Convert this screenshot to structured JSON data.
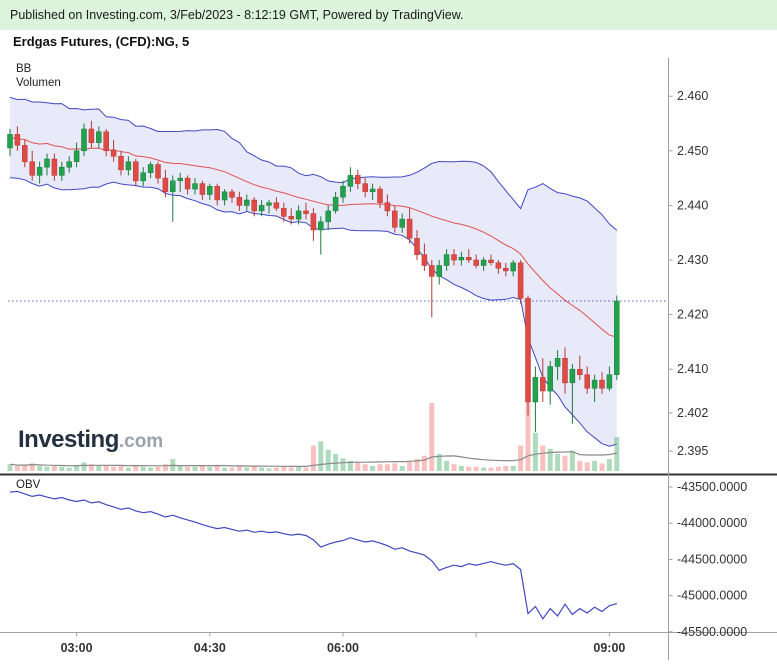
{
  "header": {
    "published_line": "Published on Investing.com, 3/Feb/2023 - 8:12:19 GMT, Powered by TradingView."
  },
  "title": "Erdgas Futures, (CFD):NG, 5",
  "overlays": {
    "bb_label": "BB",
    "volume_label": "Volumen",
    "obv_label": "OBV",
    "watermark_main": "Investing",
    "watermark_suffix": ".com"
  },
  "colors": {
    "header_bg": "#dcf3dc",
    "header_text": "#1a1a1a",
    "up": "#23a24d",
    "up_border": "#1a7d3b",
    "down": "#e04a45",
    "down_border": "#b33a36",
    "bb_line": "#4149c0",
    "bb_fill": "rgba(110,118,216,0.16)",
    "bb_mid": "#e05050",
    "last_price_line": "#4a5fd0",
    "vol_up": "rgba(76,175,110,0.45)",
    "vol_down": "rgba(239,105,100,0.42)",
    "vol_ma": "#8a8a8a",
    "obv_line": "#4149c0",
    "axis_text": "#333333",
    "axis_line": "#a0a0a0",
    "separator": "#333333"
  },
  "chart_data": {
    "type": "candlestick",
    "title": "Erdgas Futures, (CFD):NG, 5",
    "interval_minutes": 5,
    "indicators": [
      "BB",
      "Volumen",
      "OBV"
    ],
    "x_ticks": [
      "03:00",
      "04:30",
      "06:00",
      "09:00"
    ],
    "minor_x_ticks": [
      "07:30"
    ],
    "price_pane": {
      "ticks": [
        "2.460",
        "2.450",
        "2.440",
        "2.430",
        "2.420",
        "2.410",
        "2.402",
        "2.395"
      ],
      "last_price": 2.4225,
      "bb": {
        "window": 20,
        "mult": 2,
        "seed_closes": [
          2.448,
          2.456,
          2.45,
          2.4575,
          2.452,
          2.446,
          2.4545,
          2.45,
          2.457,
          2.449,
          2.4555,
          2.4475,
          2.453,
          2.4585,
          2.4465,
          2.454,
          2.451,
          2.4565,
          2.4485,
          2.4525
        ]
      },
      "candles": [
        [
          "02:15",
          2.4505,
          2.454,
          2.449,
          2.453,
          8
        ],
        [
          "02:20",
          2.453,
          2.4545,
          2.45,
          2.451,
          6
        ],
        [
          "02:25",
          2.451,
          2.452,
          2.447,
          2.448,
          7
        ],
        [
          "02:30",
          2.448,
          2.45,
          2.4445,
          2.4455,
          9
        ],
        [
          "02:35",
          2.4455,
          2.448,
          2.444,
          2.447,
          6
        ],
        [
          "02:40",
          2.447,
          2.4495,
          2.4455,
          2.4485,
          5
        ],
        [
          "02:45",
          2.4485,
          2.4495,
          2.4445,
          2.4455,
          6
        ],
        [
          "02:50",
          2.4455,
          2.448,
          2.4445,
          2.447,
          5
        ],
        [
          "02:55",
          2.447,
          2.449,
          2.446,
          2.448,
          4
        ],
        [
          "03:00",
          2.448,
          2.4515,
          2.447,
          2.45,
          7
        ],
        [
          "03:05",
          2.45,
          2.455,
          2.449,
          2.454,
          10
        ],
        [
          "03:10",
          2.454,
          2.4555,
          2.4505,
          2.4515,
          8
        ],
        [
          "03:15",
          2.4515,
          2.4545,
          2.4505,
          2.4535,
          6
        ],
        [
          "03:20",
          2.4535,
          2.454,
          2.449,
          2.45,
          7
        ],
        [
          "03:25",
          2.45,
          2.452,
          2.448,
          2.449,
          5
        ],
        [
          "03:30",
          2.449,
          2.45,
          2.4455,
          2.4465,
          6
        ],
        [
          "03:35",
          2.4465,
          2.449,
          2.4455,
          2.448,
          4
        ],
        [
          "03:40",
          2.448,
          2.4485,
          2.4435,
          2.4445,
          7
        ],
        [
          "03:45",
          2.4445,
          2.447,
          2.4435,
          2.446,
          5
        ],
        [
          "03:50",
          2.446,
          2.448,
          2.445,
          2.4475,
          4
        ],
        [
          "03:55",
          2.4475,
          2.448,
          2.444,
          2.445,
          5
        ],
        [
          "04:00",
          2.445,
          2.4465,
          2.4415,
          2.4425,
          8
        ],
        [
          "04:05",
          2.4425,
          2.4455,
          2.437,
          2.4445,
          14
        ],
        [
          "04:10",
          2.4445,
          2.446,
          2.4425,
          2.445,
          6
        ],
        [
          "04:15",
          2.445,
          2.4455,
          2.442,
          2.443,
          5
        ],
        [
          "04:20",
          2.443,
          2.445,
          2.442,
          2.444,
          5
        ],
        [
          "04:25",
          2.444,
          2.4445,
          2.441,
          2.442,
          6
        ],
        [
          "04:30",
          2.442,
          2.444,
          2.441,
          2.4435,
          5
        ],
        [
          "04:35",
          2.4435,
          2.444,
          2.44,
          2.441,
          7
        ],
        [
          "04:40",
          2.441,
          2.443,
          2.44,
          2.4425,
          4
        ],
        [
          "04:45",
          2.4425,
          2.443,
          2.4405,
          2.4415,
          4
        ],
        [
          "04:50",
          2.4415,
          2.4425,
          2.439,
          2.44,
          6
        ],
        [
          "04:55",
          2.44,
          2.442,
          2.439,
          2.441,
          4
        ],
        [
          "05:00",
          2.441,
          2.4415,
          2.438,
          2.439,
          6
        ],
        [
          "05:05",
          2.439,
          2.441,
          2.438,
          2.44,
          4
        ],
        [
          "05:10",
          2.44,
          2.441,
          2.4385,
          2.4405,
          3
        ],
        [
          "05:15",
          2.4405,
          2.4415,
          2.439,
          2.4395,
          4
        ],
        [
          "05:20",
          2.4395,
          2.4405,
          2.437,
          2.438,
          5
        ],
        [
          "05:25",
          2.438,
          2.4395,
          2.4365,
          2.4375,
          4
        ],
        [
          "05:30",
          2.4375,
          2.44,
          2.4365,
          2.439,
          5
        ],
        [
          "05:35",
          2.439,
          2.4405,
          2.4375,
          2.4385,
          4
        ],
        [
          "05:40",
          2.4385,
          2.4395,
          2.4335,
          2.4355,
          30
        ],
        [
          "05:45",
          2.4355,
          2.438,
          2.431,
          2.437,
          35
        ],
        [
          "05:50",
          2.437,
          2.44,
          2.4355,
          2.439,
          25
        ],
        [
          "05:55",
          2.439,
          2.4425,
          2.4385,
          2.4415,
          20
        ],
        [
          "06:00",
          2.4415,
          2.4445,
          2.4405,
          2.4435,
          15
        ],
        [
          "06:05",
          2.4435,
          2.447,
          2.4425,
          2.4455,
          12
        ],
        [
          "06:10",
          2.4455,
          2.4465,
          2.443,
          2.444,
          10
        ],
        [
          "06:15",
          2.444,
          2.445,
          2.4415,
          2.4425,
          8
        ],
        [
          "06:20",
          2.4425,
          2.444,
          2.441,
          2.443,
          6
        ],
        [
          "06:25",
          2.443,
          2.4435,
          2.4395,
          2.4405,
          8
        ],
        [
          "06:30",
          2.4405,
          2.442,
          2.438,
          2.439,
          8
        ],
        [
          "06:35",
          2.439,
          2.44,
          2.435,
          2.436,
          9
        ],
        [
          "06:40",
          2.436,
          2.4385,
          2.435,
          2.4375,
          6
        ],
        [
          "06:45",
          2.4375,
          2.4395,
          2.433,
          2.434,
          12
        ],
        [
          "06:50",
          2.434,
          2.4355,
          2.43,
          2.431,
          14
        ],
        [
          "06:55",
          2.431,
          2.433,
          2.428,
          2.429,
          18
        ],
        [
          "07:00",
          2.429,
          2.43,
          2.4195,
          2.427,
          80
        ],
        [
          "07:05",
          2.427,
          2.43,
          2.4255,
          2.429,
          20
        ],
        [
          "07:10",
          2.429,
          2.432,
          2.428,
          2.431,
          12
        ],
        [
          "07:15",
          2.431,
          2.432,
          2.429,
          2.43,
          8
        ],
        [
          "07:20",
          2.43,
          2.4315,
          2.429,
          2.4305,
          6
        ],
        [
          "07:25",
          2.4305,
          2.432,
          2.4295,
          2.43,
          5
        ],
        [
          "07:30",
          2.43,
          2.431,
          2.4285,
          2.429,
          5
        ],
        [
          "07:35",
          2.429,
          2.4305,
          2.428,
          2.43,
          4
        ],
        [
          "07:40",
          2.43,
          2.431,
          2.429,
          2.4295,
          4
        ],
        [
          "07:45",
          2.4295,
          2.43,
          2.4275,
          2.4285,
          5
        ],
        [
          "07:50",
          2.4285,
          2.4295,
          2.427,
          2.428,
          6
        ],
        [
          "07:55",
          2.428,
          2.43,
          2.427,
          2.4295,
          6
        ],
        [
          "08:00",
          2.4295,
          2.43,
          2.422,
          2.423,
          30
        ],
        [
          "08:05",
          2.423,
          2.4235,
          2.4015,
          2.404,
          100
        ],
        [
          "08:10",
          2.404,
          2.4105,
          2.3985,
          2.4085,
          45
        ],
        [
          "08:15",
          2.4085,
          2.412,
          2.404,
          2.406,
          30
        ],
        [
          "08:20",
          2.406,
          2.4115,
          2.4035,
          2.4105,
          26
        ],
        [
          "08:25",
          2.4105,
          2.4135,
          2.408,
          2.412,
          20
        ],
        [
          "08:30",
          2.412,
          2.414,
          2.4055,
          2.4075,
          18
        ],
        [
          "08:35",
          2.4075,
          2.411,
          2.4,
          2.41,
          24
        ],
        [
          "08:40",
          2.41,
          2.4125,
          2.408,
          2.409,
          12
        ],
        [
          "08:45",
          2.409,
          2.4105,
          2.4055,
          2.4065,
          10
        ],
        [
          "08:50",
          2.4065,
          2.409,
          2.404,
          2.408,
          12
        ],
        [
          "08:55",
          2.408,
          2.4095,
          2.4055,
          2.4065,
          9
        ],
        [
          "09:00",
          2.4065,
          2.4105,
          2.406,
          2.409,
          14
        ],
        [
          "09:05",
          2.409,
          2.4235,
          2.408,
          2.4225,
          40
        ]
      ]
    },
    "obv_pane": {
      "ticks": [
        "-43500.0000",
        "-44000.0000",
        "-44500.0000",
        "-45000.0000",
        "-45500.0000"
      ],
      "values": [
        -43570,
        -43560,
        -43595,
        -43630,
        -43610,
        -43640,
        -43665,
        -43645,
        -43680,
        -43700,
        -43680,
        -43720,
        -43705,
        -43745,
        -43775,
        -43810,
        -43790,
        -43830,
        -43855,
        -43840,
        -43875,
        -43915,
        -43890,
        -43925,
        -43955,
        -43985,
        -44020,
        -44050,
        -44075,
        -44060,
        -44085,
        -44110,
        -44095,
        -44125,
        -44110,
        -44130,
        -44120,
        -44145,
        -44165,
        -44150,
        -44170,
        -44230,
        -44330,
        -44290,
        -44260,
        -44240,
        -44200,
        -44230,
        -44260,
        -44245,
        -44275,
        -44310,
        -44360,
        -44340,
        -44385,
        -44410,
        -44440,
        -44520,
        -44650,
        -44610,
        -44580,
        -44600,
        -44560,
        -44580,
        -44555,
        -44530,
        -44560,
        -44580,
        -44560,
        -44640,
        -45250,
        -45150,
        -45320,
        -45180,
        -45280,
        -45120,
        -45260,
        -45180,
        -45240,
        -45160,
        -45220,
        -45140,
        -45110
      ]
    }
  }
}
